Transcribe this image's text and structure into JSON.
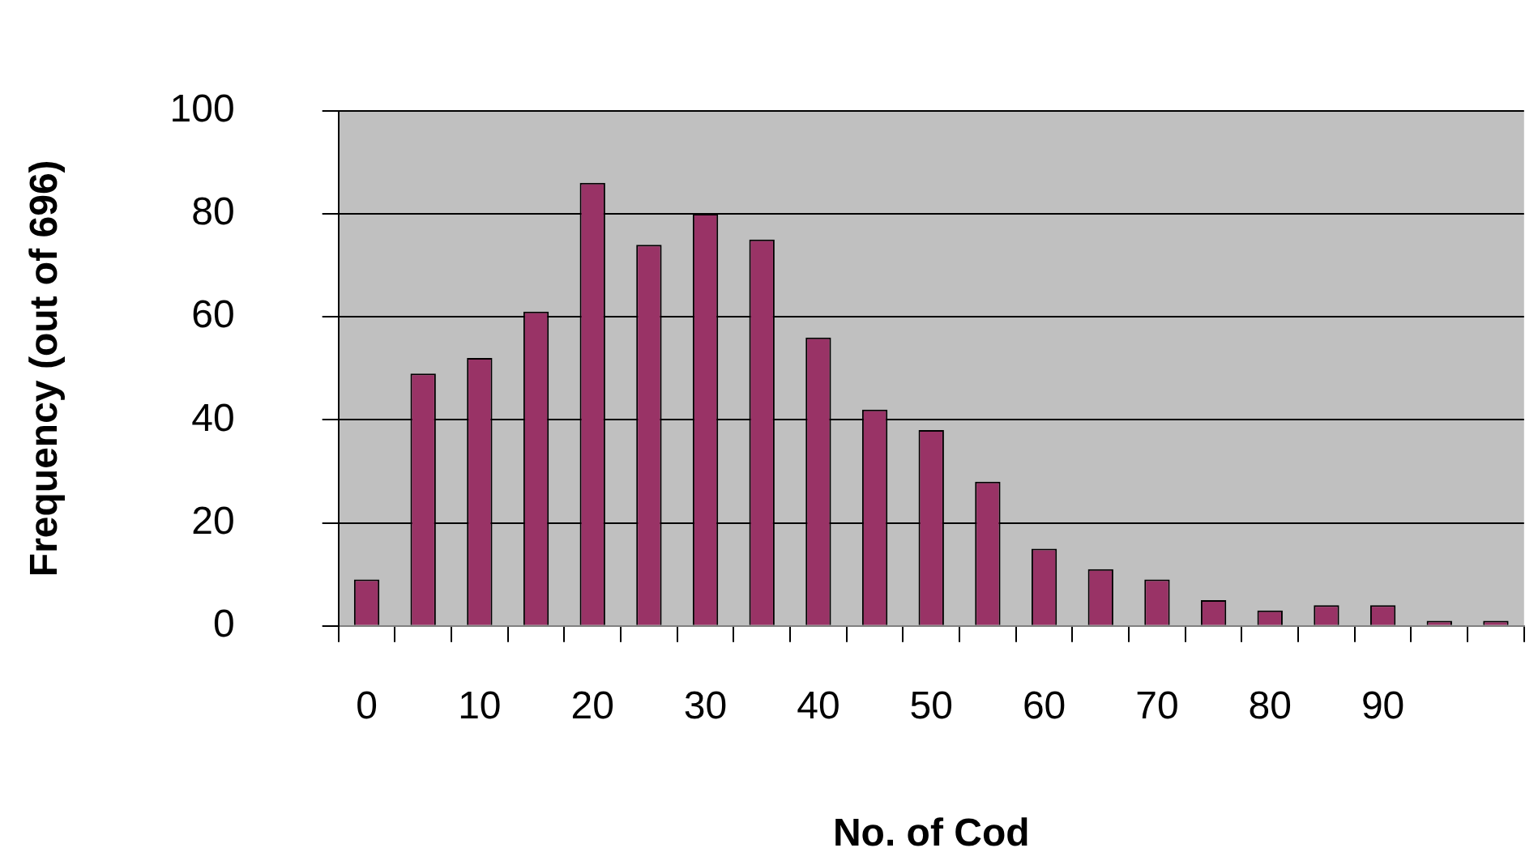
{
  "chart_data": {
    "type": "bar",
    "xlabel": "No. of Cod",
    "ylabel": "Frequency (out of 696)",
    "categories": [
      "0",
      null,
      "10",
      null,
      "20",
      null,
      "30",
      null,
      "40",
      null,
      "50",
      null,
      "60",
      null,
      "70",
      null,
      "80",
      null,
      "90",
      null,
      null
    ],
    "values": [
      9,
      49,
      52,
      61,
      86,
      74,
      80,
      75,
      56,
      42,
      38,
      28,
      15,
      11,
      9,
      5,
      3,
      4,
      4,
      1,
      1
    ],
    "color": "#993366",
    "ylim": [
      0,
      100
    ],
    "yticks": [
      0,
      20,
      40,
      60,
      80,
      100
    ],
    "grid": "y",
    "legend": false
  }
}
